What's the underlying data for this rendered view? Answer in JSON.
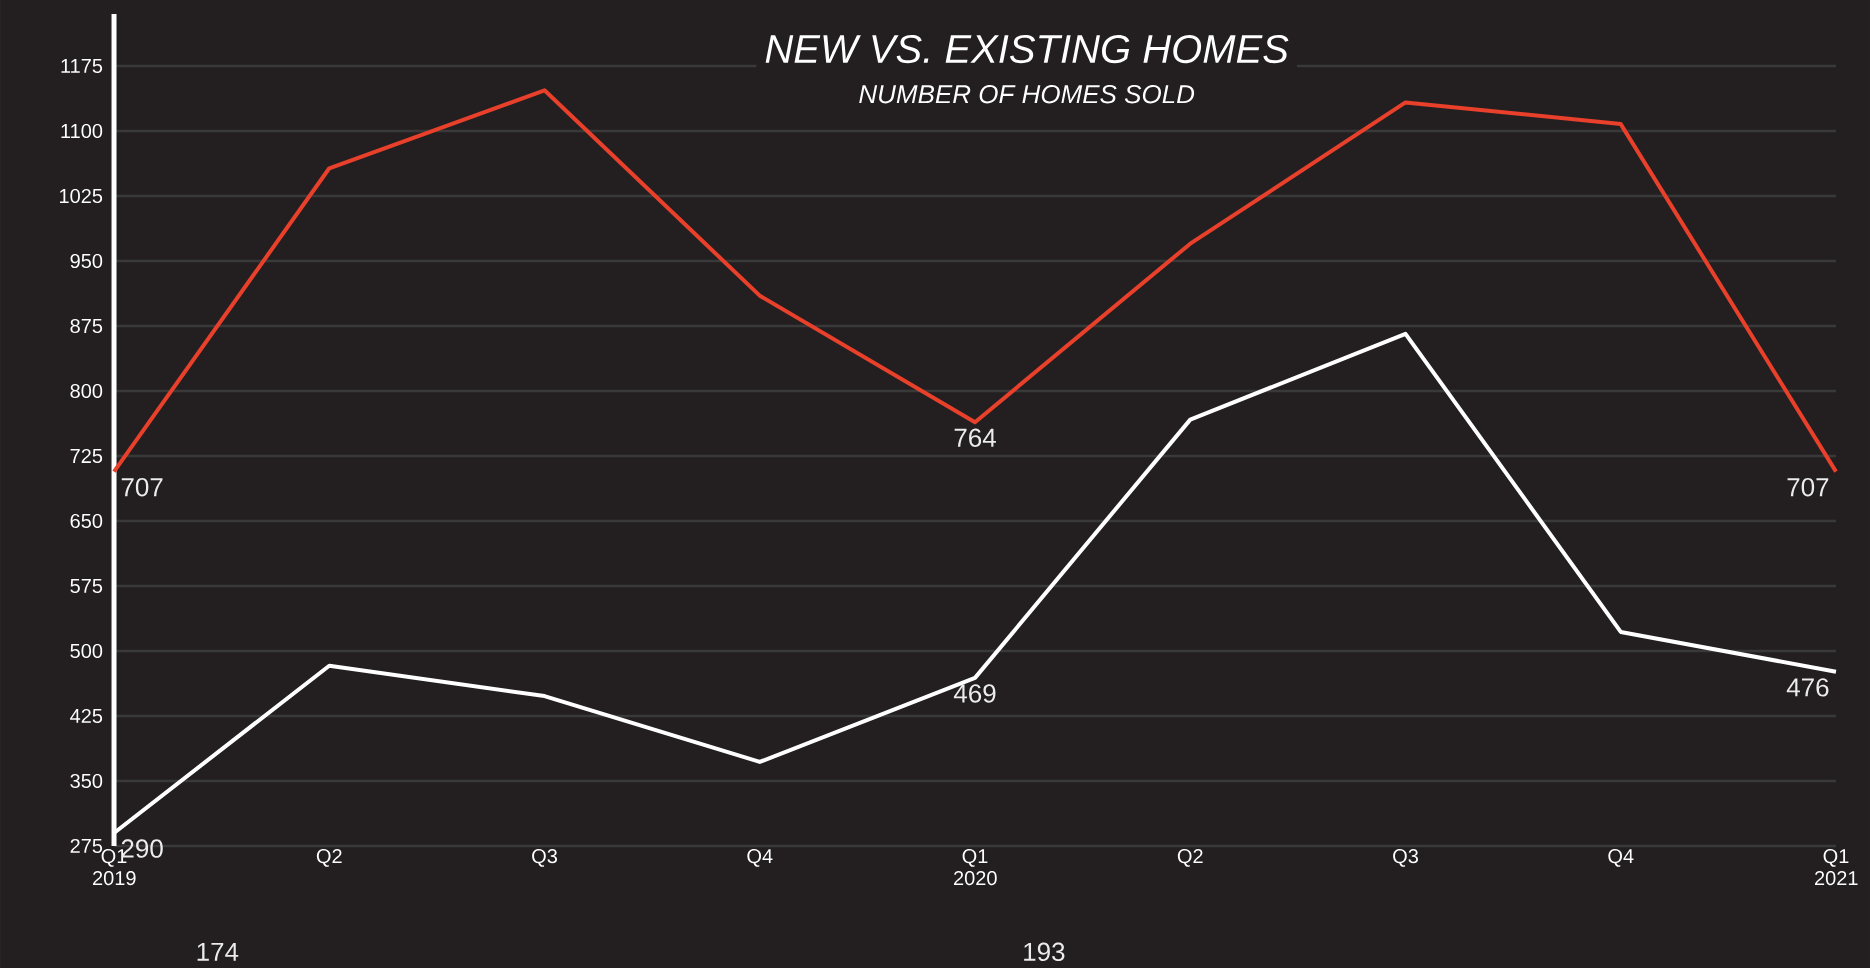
{
  "chart_data": {
    "type": "line",
    "title": "NEW VS. EXISTING HOMES",
    "subtitle": "NUMBER OF HOMES SOLD",
    "categories": [
      "Q1 2019",
      "Q2",
      "Q3",
      "Q4",
      "Q1 2020",
      "Q2",
      "Q3",
      "Q4",
      "Q1 2021"
    ],
    "series": [
      {
        "color": "#e8402a",
        "values": [
          707,
          1057,
          1147,
          910,
          764,
          970,
          1133,
          1108,
          707
        ],
        "value_labels": [
          "707",
          null,
          null,
          null,
          "764",
          null,
          null,
          null,
          "707"
        ]
      },
      {
        "color": "#ffffff",
        "values": [
          290,
          483,
          448,
          372,
          469,
          767,
          866,
          522,
          476
        ],
        "value_labels": [
          "290",
          null,
          null,
          null,
          "469",
          null,
          null,
          null,
          "476"
        ]
      }
    ],
    "ylim": [
      275,
      1235
    ],
    "yticks": [
      275,
      350,
      425,
      500,
      575,
      650,
      725,
      800,
      875,
      950,
      1025,
      1100,
      1175
    ],
    "grid": "y",
    "marker": "none",
    "line_style": "solid",
    "annotations": [
      "174",
      "193"
    ]
  }
}
